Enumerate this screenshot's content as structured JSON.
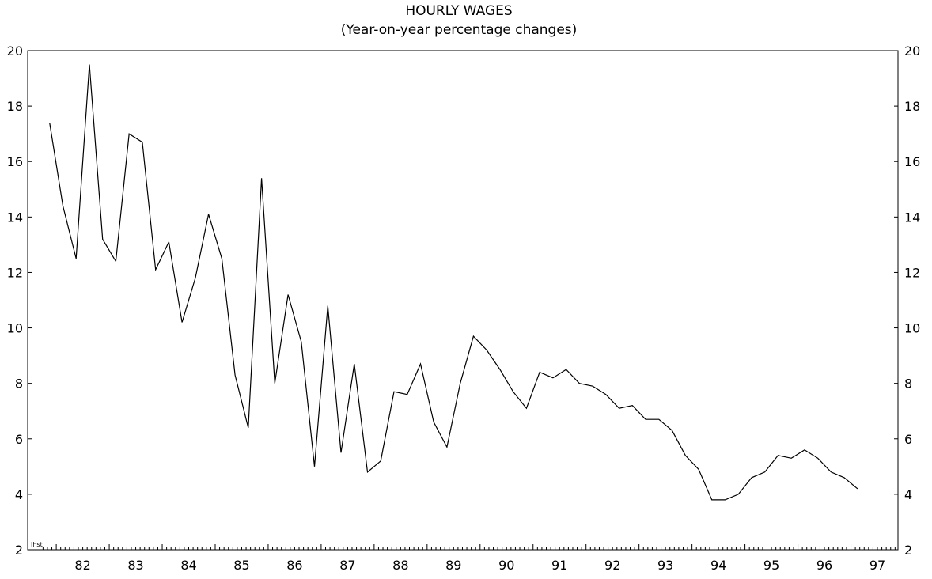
{
  "chart_data": {
    "type": "line",
    "title": "HOURLY WAGES",
    "subtitle": "(Year-on-year percentage changes)",
    "source_note": "Ihst",
    "xlabel": "",
    "ylabel": "",
    "ylim": [
      2,
      20
    ],
    "yticks": [
      2,
      4,
      6,
      8,
      10,
      12,
      14,
      16,
      18,
      20
    ],
    "y_axis_sides": [
      "left",
      "right"
    ],
    "x_tick_labels": [
      "82",
      "83",
      "84",
      "85",
      "86",
      "87",
      "88",
      "89",
      "90",
      "91",
      "92",
      "93",
      "94",
      "95",
      "96",
      "97"
    ],
    "x_frequency": "quarterly",
    "grid": false,
    "legend": "none",
    "line_color": "#000000",
    "series": [
      {
        "x": [
          "1981Q4",
          "1982Q1",
          "1982Q2",
          "1982Q3",
          "1982Q4",
          "1983Q1",
          "1983Q2",
          "1983Q3",
          "1983Q4",
          "1984Q1",
          "1984Q2",
          "1984Q3",
          "1984Q4",
          "1985Q1",
          "1985Q2",
          "1985Q3",
          "1985Q4",
          "1986Q1",
          "1986Q2",
          "1986Q3",
          "1986Q4",
          "1987Q1",
          "1987Q2",
          "1987Q3",
          "1987Q4",
          "1988Q1",
          "1988Q2",
          "1988Q3",
          "1988Q4",
          "1989Q1",
          "1989Q2",
          "1989Q3",
          "1989Q4",
          "1990Q1",
          "1990Q2",
          "1990Q3",
          "1990Q4",
          "1991Q1",
          "1991Q2",
          "1991Q3",
          "1991Q4",
          "1992Q1",
          "1992Q2",
          "1992Q3",
          "1992Q4",
          "1993Q1",
          "1993Q2",
          "1993Q3",
          "1993Q4",
          "1994Q1",
          "1994Q2",
          "1994Q3",
          "1994Q4",
          "1995Q1",
          "1995Q2",
          "1995Q3",
          "1995Q4",
          "1996Q1",
          "1996Q2",
          "1996Q3",
          "1996Q4",
          "1997Q1"
        ],
        "values": [
          17.4,
          14.4,
          12.5,
          19.5,
          13.2,
          12.4,
          17.0,
          16.7,
          12.1,
          13.1,
          10.2,
          11.8,
          14.1,
          12.5,
          8.3,
          6.4,
          15.4,
          8.0,
          11.2,
          9.5,
          5.0,
          10.8,
          5.5,
          8.7,
          4.8,
          5.2,
          7.7,
          7.6,
          8.7,
          6.6,
          5.7,
          8.0,
          9.7,
          9.2,
          8.5,
          7.7,
          7.1,
          8.4,
          8.2,
          8.5,
          8.0,
          7.9,
          7.6,
          7.1,
          7.2,
          6.7,
          6.7,
          6.3,
          5.4,
          4.9,
          3.8,
          3.8,
          4.0,
          4.6,
          4.8,
          5.4,
          5.3,
          5.6,
          5.3,
          4.8,
          4.6,
          4.2
        ]
      }
    ]
  }
}
